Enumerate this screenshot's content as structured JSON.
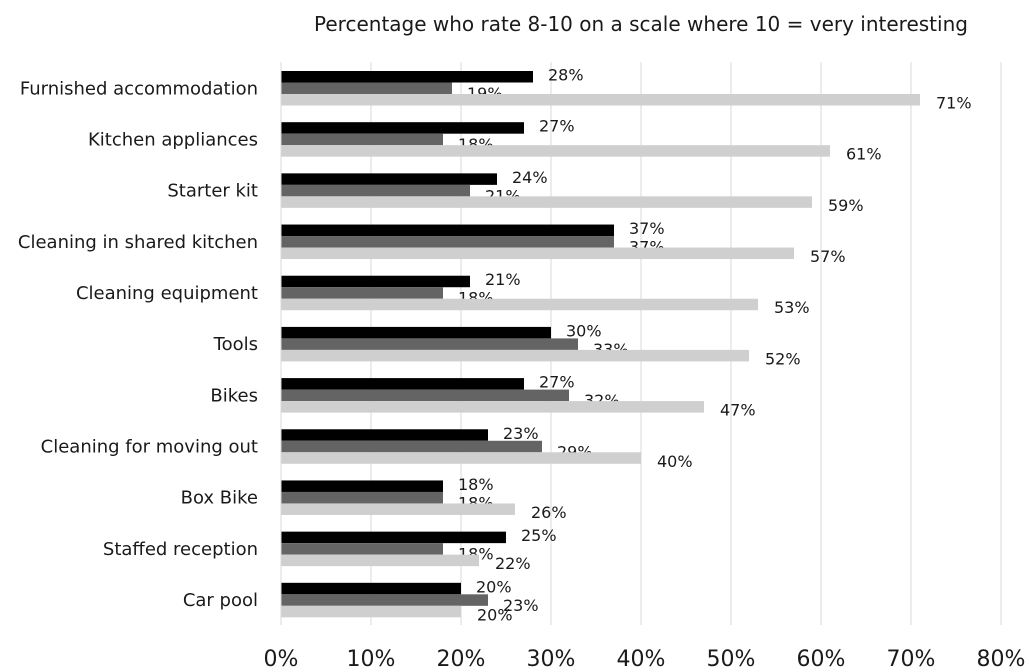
{
  "chart_data": {
    "type": "bar",
    "orientation": "horizontal",
    "title": "Percentage who rate 8-10 on a scale where 10 = very interesting",
    "xlabel": "",
    "ylabel": "",
    "xlim": [
      0,
      80
    ],
    "x_ticks": [
      "0%",
      "10%",
      "20%",
      "30%",
      "40%",
      "50%",
      "60%",
      "70%",
      "80%"
    ],
    "grid": "vertical",
    "legend": "none",
    "categories": [
      "Furnished accommodation",
      "Kitchen appliances",
      "Starter kit",
      "Cleaning in shared kitchen",
      "Cleaning equipment",
      "Tools",
      "Bikes",
      "Cleaning for moving out",
      "Box Bike",
      "Staffed reception",
      "Car pool"
    ],
    "series": [
      {
        "color": "#000000",
        "values": [
          28,
          27,
          24,
          37,
          21,
          30,
          27,
          23,
          18,
          25,
          20
        ],
        "labels": [
          "28%",
          "27%",
          "24%",
          "37%",
          "21%",
          "30%",
          "27%",
          "23%",
          "18%",
          "25%",
          "20%"
        ]
      },
      {
        "color": "#646464",
        "values": [
          19,
          18,
          21,
          37,
          18,
          33,
          32,
          29,
          18,
          18,
          23
        ],
        "labels": [
          "19%",
          "18%",
          "21%",
          "37%",
          "18%",
          "33%",
          "32%",
          "29%",
          "18%",
          "18%",
          "23%"
        ]
      },
      {
        "color": "#cfcfcf",
        "values": [
          71,
          61,
          59,
          57,
          53,
          52,
          47,
          40,
          26,
          22,
          20
        ],
        "labels": [
          "71%",
          "61%",
          "59%",
          "57%",
          "53%",
          "52%",
          "47%",
          "40%",
          "26%",
          "22%",
          "20%"
        ]
      }
    ]
  }
}
